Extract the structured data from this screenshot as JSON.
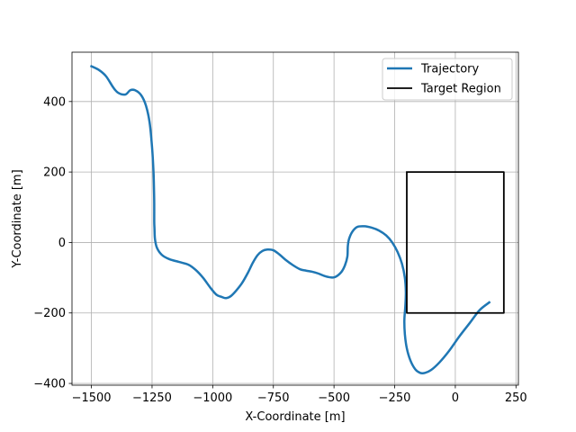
{
  "chart_data": {
    "type": "line",
    "xlabel": "X-Coordinate [m]",
    "ylabel": "Y-Coordinate [m]",
    "xlim": [
      -1580,
      260
    ],
    "ylim": [
      -405,
      540
    ],
    "xticks": [
      -1500,
      -1250,
      -1000,
      -750,
      -500,
      -250,
      0,
      250
    ],
    "xtick_labels": [
      "−1500",
      "−1250",
      "−1000",
      "−750",
      "−500",
      "−250",
      "0",
      "250"
    ],
    "yticks": [
      -400,
      -200,
      0,
      200,
      400
    ],
    "ytick_labels": [
      "−400",
      "−200",
      "0",
      "200",
      "400"
    ],
    "grid": true,
    "legend_position": "top-right",
    "colors": {
      "trajectory": "#1f77b4",
      "target": "#000000",
      "grid": "#b0b0b0"
    },
    "series": [
      {
        "name": "Trajectory",
        "x": [
          -1500,
          -1470,
          -1440,
          -1410,
          -1390,
          -1360,
          -1340,
          -1320,
          -1295,
          -1275,
          -1260,
          -1250,
          -1244,
          -1242,
          -1241,
          -1241,
          -1240,
          -1238,
          -1230,
          -1210,
          -1180,
          -1140,
          -1100,
          -1070,
          -1040,
          -1010,
          -985,
          -965,
          -945,
          -925,
          -905,
          -880,
          -855,
          -835,
          -815,
          -795,
          -775,
          -750,
          -725,
          -700,
          -670,
          -640,
          -615,
          -590,
          -565,
          -540,
          -515,
          -495,
          -470,
          -455,
          -445,
          -443,
          -438,
          -425,
          -405,
          -375,
          -345,
          -315,
          -285,
          -260,
          -238,
          -220,
          -208,
          -204,
          -206,
          -210,
          -208,
          -200,
          -185,
          -165,
          -145,
          -125,
          -100,
          -65,
          -25,
          15,
          60,
          100,
          140
        ],
        "y": [
          500,
          490,
          472,
          440,
          425,
          420,
          432,
          432,
          418,
          388,
          340,
          270,
          200,
          150,
          110,
          60,
          40,
          10,
          -15,
          -35,
          -47,
          -55,
          -63,
          -78,
          -100,
          -128,
          -148,
          -154,
          -158,
          -152,
          -138,
          -116,
          -86,
          -58,
          -36,
          -24,
          -20,
          -22,
          -34,
          -49,
          -64,
          -76,
          -80,
          -83,
          -88,
          -95,
          -99,
          -98,
          -84,
          -65,
          -40,
          -10,
          10,
          30,
          44,
          46,
          42,
          34,
          20,
          0,
          -27,
          -60,
          -100,
          -140,
          -180,
          -220,
          -260,
          -300,
          -335,
          -360,
          -370,
          -370,
          -362,
          -340,
          -307,
          -268,
          -228,
          -192,
          -170
        ]
      },
      {
        "name": "Target Region",
        "x": [
          -200,
          200,
          200,
          -200,
          -200
        ],
        "y": [
          200,
          200,
          -200,
          -200,
          200
        ]
      }
    ]
  }
}
